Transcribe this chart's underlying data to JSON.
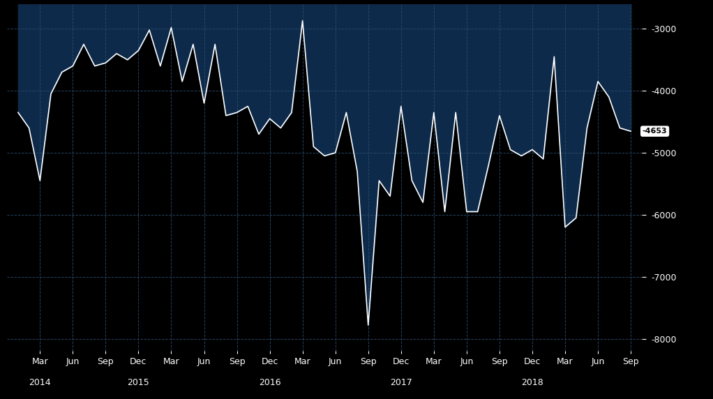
{
  "background_color": "#000000",
  "plot_bg_color": "#000000",
  "grid_color": "#2a4a6a",
  "line_color": "#ffffff",
  "fill_color": "#0d2a4a",
  "label_color": "#ffffff",
  "current_value": -4653,
  "current_value_label": "-4653",
  "ylim": [
    -8200,
    -2600
  ],
  "yticks": [
    -8000,
    -7000,
    -6000,
    -5000,
    -4000,
    -3000
  ],
  "values": [
    -4350,
    -4600,
    -5450,
    -4050,
    -3700,
    -3600,
    -3250,
    -3600,
    -3550,
    -3400,
    -3500,
    -3350,
    -3020,
    -3600,
    -2980,
    -3850,
    -3250,
    -4200,
    -3250,
    -4400,
    -4350,
    -4250,
    -4700,
    -4450,
    -4600,
    -4350,
    -2870,
    -4900,
    -5050,
    -5000,
    -4350,
    -5300,
    -7780,
    -5450,
    -5700,
    -4250,
    -5450,
    -5800,
    -4350,
    -5950,
    -4350,
    -5950,
    -5950,
    -5200,
    -4400,
    -4950,
    -5050,
    -4950,
    -5100,
    -3450,
    -6200,
    -6050,
    -4600,
    -3850,
    -4100,
    -4600,
    -4653
  ],
  "xtick_positions": [
    2,
    5,
    8,
    11,
    14,
    17,
    20,
    23,
    26,
    29,
    32,
    35,
    38,
    41,
    44,
    47,
    50,
    53,
    56
  ],
  "xtick_labels": [
    "Mar",
    "Jun",
    "Sep",
    "Dec",
    "Mar",
    "Jun",
    "Sep",
    "Dec",
    "Mar",
    "Jun",
    "Sep",
    "Dec",
    "Mar",
    "Jun",
    "Sep",
    "Dec",
    "Mar",
    "Jun",
    "Sep"
  ],
  "year_ticks": [
    2,
    11,
    23,
    35,
    47
  ],
  "year_labels": [
    "2014",
    "2015",
    "2016",
    "2017",
    "2018"
  ]
}
